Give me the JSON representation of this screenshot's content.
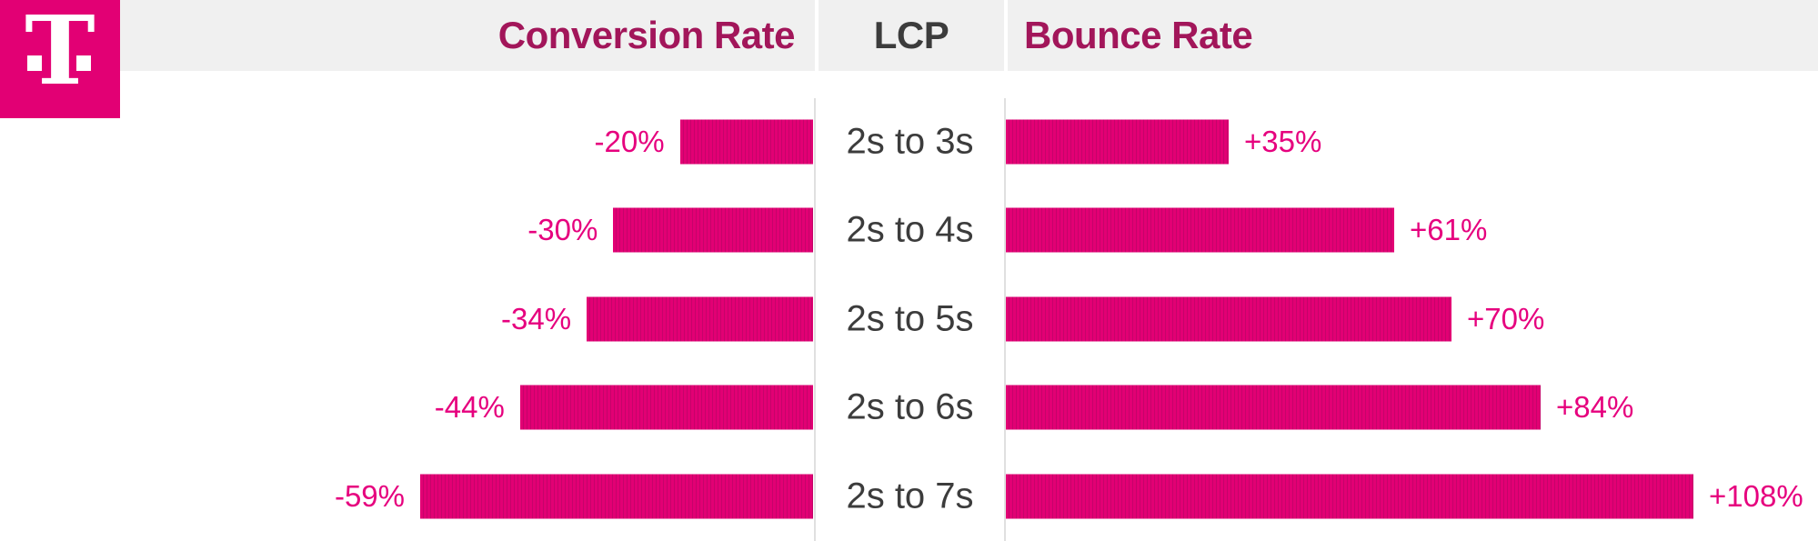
{
  "brand": {
    "logo_letter": "T",
    "logo_bg": "#E20074"
  },
  "header": {
    "conversion_label": "Conversion Rate",
    "lcp_label": "LCP",
    "bounce_label": "Bounce Rate"
  },
  "colors": {
    "accent_magenta": "#E20074",
    "bar_stripe_dark": "#C5046A",
    "value_label_magenta": "#E6007E",
    "header_text_magenta": "#A2165A",
    "dark_text": "#3C3C3C",
    "header_band_gray": "#F0F0F0",
    "separator_gray": "#E0E0E0"
  },
  "chart_data": {
    "type": "bar",
    "orientation": "horizontal-diverging",
    "title": "",
    "center_axis_label": "LCP",
    "categories": [
      "2s to 3s",
      "2s to 4s",
      "2s to 5s",
      "2s to 6s",
      "2s to 7s"
    ],
    "series": [
      {
        "name": "Conversion Rate",
        "direction": "left",
        "values": [
          -20,
          -30,
          -34,
          -44,
          -59
        ],
        "labels": [
          "-20%",
          "-30%",
          "-34%",
          "-44%",
          "-59%"
        ]
      },
      {
        "name": "Bounce Rate",
        "direction": "right",
        "values": [
          35,
          61,
          70,
          84,
          108
        ],
        "labels": [
          "+35%",
          "+61%",
          "+70%",
          "+84%",
          "+108%"
        ]
      }
    ],
    "bar_color": "#E20074",
    "grid": false,
    "legend_position": "top-header-row"
  }
}
